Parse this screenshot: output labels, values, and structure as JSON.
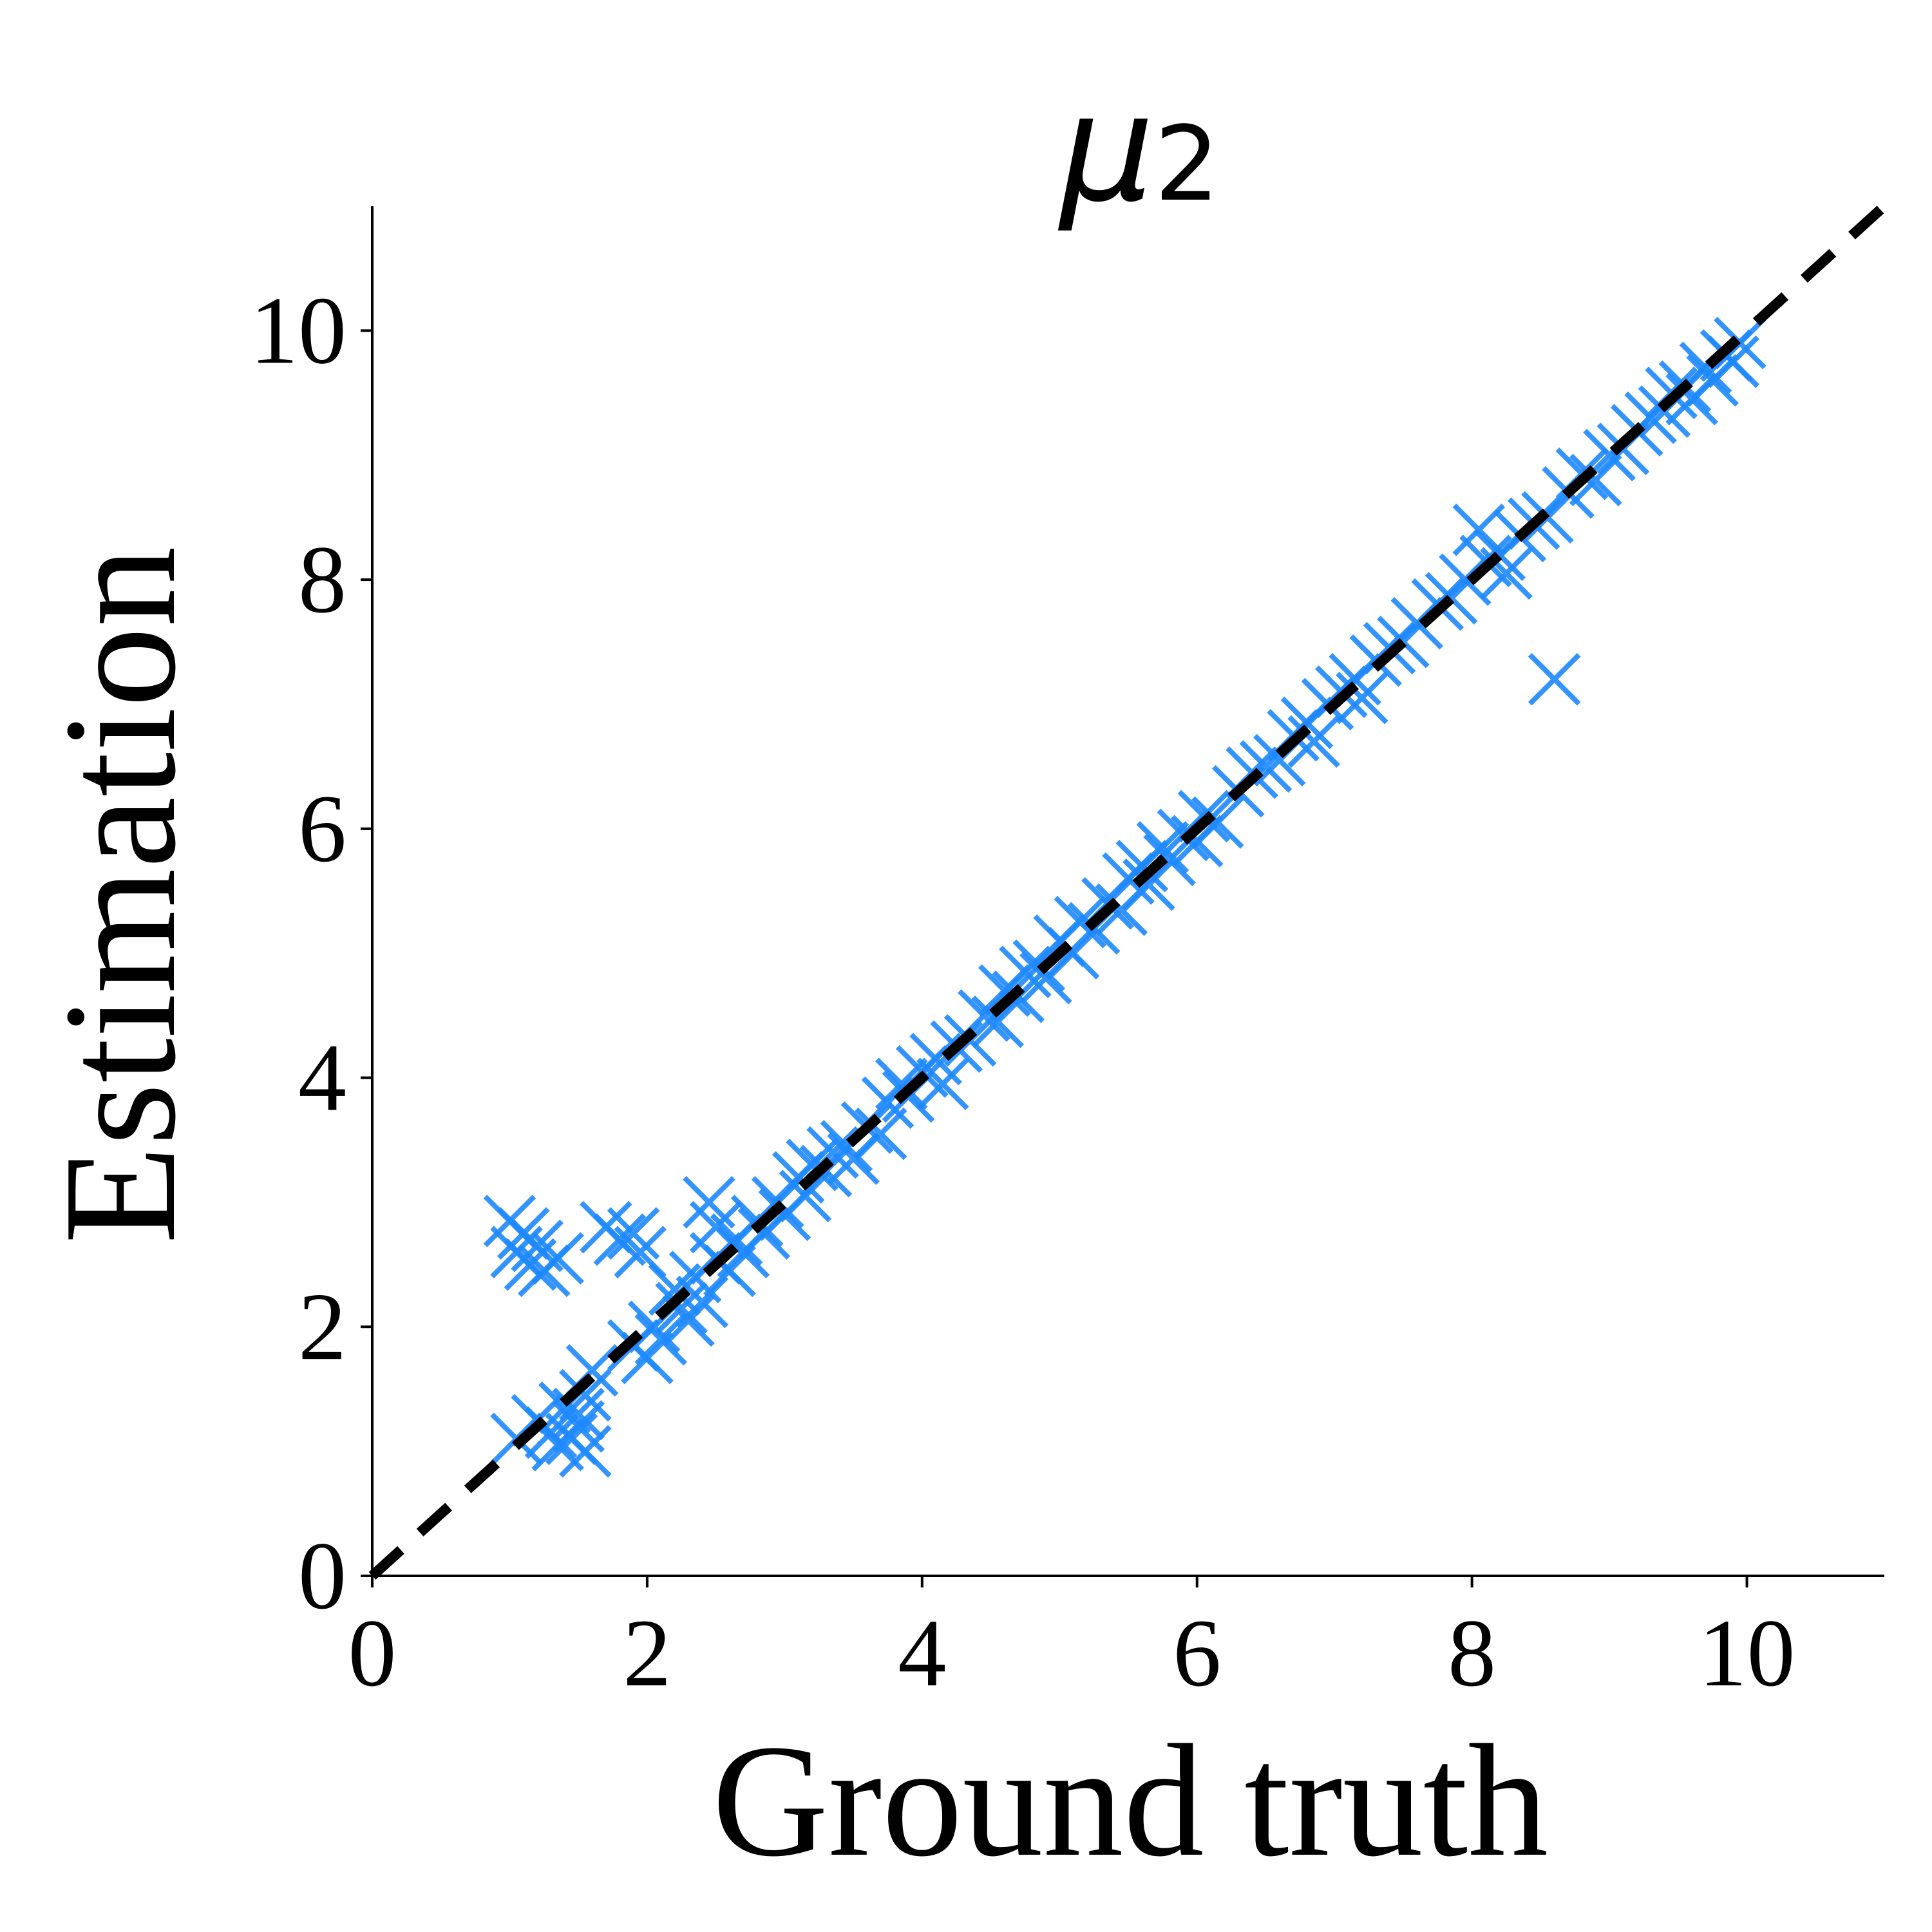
{
  "chart_data": {
    "type": "scatter",
    "title": {
      "main": "μ",
      "subscript": "2"
    },
    "xlabel": "Ground truth",
    "ylabel": "Estimation",
    "xlim": [
      0,
      11
    ],
    "ylim": [
      0,
      11
    ],
    "xticks": [
      0,
      2,
      4,
      6,
      8,
      10
    ],
    "yticks": [
      0,
      2,
      4,
      6,
      8,
      10
    ],
    "xtick_labels": [
      "0",
      "2",
      "4",
      "6",
      "8",
      "10"
    ],
    "ytick_labels": [
      "0",
      "2",
      "4",
      "6",
      "8",
      "10"
    ],
    "grid": false,
    "marker": "x",
    "marker_color": "#1E88FF",
    "reference_line": {
      "style": "dashed",
      "color": "#000000",
      "from": [
        0,
        0
      ],
      "to": [
        11,
        11
      ]
    },
    "points": [
      {
        "x": 1.0,
        "y": 2.85
      },
      {
        "x": 1.05,
        "y": 2.6
      },
      {
        "x": 1.1,
        "y": 2.75
      },
      {
        "x": 1.15,
        "y": 2.5
      },
      {
        "x": 1.2,
        "y": 2.65
      },
      {
        "x": 1.25,
        "y": 2.45
      },
      {
        "x": 1.35,
        "y": 2.55
      },
      {
        "x": 1.7,
        "y": 2.8
      },
      {
        "x": 1.8,
        "y": 2.7
      },
      {
        "x": 1.9,
        "y": 2.75
      },
      {
        "x": 1.95,
        "y": 2.6
      },
      {
        "x": 2.45,
        "y": 3.0
      },
      {
        "x": 2.5,
        "y": 2.8
      },
      {
        "x": 1.05,
        "y": 1.1
      },
      {
        "x": 1.2,
        "y": 1.25
      },
      {
        "x": 1.3,
        "y": 1.15
      },
      {
        "x": 1.35,
        "y": 1.05
      },
      {
        "x": 1.4,
        "y": 1.35
      },
      {
        "x": 1.45,
        "y": 1.1
      },
      {
        "x": 1.5,
        "y": 1.2
      },
      {
        "x": 1.55,
        "y": 1.45
      },
      {
        "x": 1.6,
        "y": 1.65
      },
      {
        "x": 1.55,
        "y": 1.0
      },
      {
        "x": 1.5,
        "y": 1.3
      },
      {
        "x": 1.9,
        "y": 1.85
      },
      {
        "x": 2.0,
        "y": 1.75
      },
      {
        "x": 2.05,
        "y": 2.0
      },
      {
        "x": 2.1,
        "y": 1.9
      },
      {
        "x": 2.2,
        "y": 2.3
      },
      {
        "x": 2.25,
        "y": 2.15
      },
      {
        "x": 2.3,
        "y": 2.05
      },
      {
        "x": 2.35,
        "y": 2.4
      },
      {
        "x": 2.4,
        "y": 2.2
      },
      {
        "x": 2.5,
        "y": 2.55
      },
      {
        "x": 2.6,
        "y": 2.45
      },
      {
        "x": 2.65,
        "y": 2.7
      },
      {
        "x": 2.7,
        "y": 2.6
      },
      {
        "x": 2.8,
        "y": 2.85
      },
      {
        "x": 2.85,
        "y": 2.75
      },
      {
        "x": 2.95,
        "y": 3.0
      },
      {
        "x": 3.0,
        "y": 2.9
      },
      {
        "x": 3.1,
        "y": 3.2
      },
      {
        "x": 3.15,
        "y": 3.05
      },
      {
        "x": 3.2,
        "y": 3.3
      },
      {
        "x": 3.3,
        "y": 3.25
      },
      {
        "x": 3.35,
        "y": 3.4
      },
      {
        "x": 3.45,
        "y": 3.45
      },
      {
        "x": 3.5,
        "y": 3.35
      },
      {
        "x": 3.6,
        "y": 3.6
      },
      {
        "x": 3.7,
        "y": 3.55
      },
      {
        "x": 3.75,
        "y": 3.8
      },
      {
        "x": 3.85,
        "y": 3.95
      },
      {
        "x": 3.9,
        "y": 3.85
      },
      {
        "x": 4.0,
        "y": 4.05
      },
      {
        "x": 4.1,
        "y": 4.15
      },
      {
        "x": 4.15,
        "y": 3.95
      },
      {
        "x": 4.25,
        "y": 4.25
      },
      {
        "x": 4.35,
        "y": 4.3
      },
      {
        "x": 4.45,
        "y": 4.5
      },
      {
        "x": 4.55,
        "y": 4.45
      },
      {
        "x": 4.6,
        "y": 4.7
      },
      {
        "x": 4.7,
        "y": 4.65
      },
      {
        "x": 4.75,
        "y": 4.85
      },
      {
        "x": 4.85,
        "y": 4.9
      },
      {
        "x": 4.9,
        "y": 4.8
      },
      {
        "x": 5.0,
        "y": 5.1
      },
      {
        "x": 5.1,
        "y": 5.0
      },
      {
        "x": 5.15,
        "y": 5.25
      },
      {
        "x": 5.25,
        "y": 5.2
      },
      {
        "x": 5.35,
        "y": 5.4
      },
      {
        "x": 5.45,
        "y": 5.35
      },
      {
        "x": 5.5,
        "y": 5.6
      },
      {
        "x": 5.6,
        "y": 5.7
      },
      {
        "x": 5.65,
        "y": 5.55
      },
      {
        "x": 5.75,
        "y": 5.85
      },
      {
        "x": 5.8,
        "y": 5.75
      },
      {
        "x": 5.9,
        "y": 5.95
      },
      {
        "x": 6.0,
        "y": 5.9
      },
      {
        "x": 6.05,
        "y": 6.1
      },
      {
        "x": 6.15,
        "y": 6.05
      },
      {
        "x": 6.3,
        "y": 6.3
      },
      {
        "x": 6.4,
        "y": 6.45
      },
      {
        "x": 6.5,
        "y": 6.5
      },
      {
        "x": 6.6,
        "y": 6.55
      },
      {
        "x": 6.7,
        "y": 6.75
      },
      {
        "x": 6.8,
        "y": 6.85
      },
      {
        "x": 6.85,
        "y": 6.7
      },
      {
        "x": 6.95,
        "y": 7.0
      },
      {
        "x": 7.05,
        "y": 7.1
      },
      {
        "x": 7.15,
        "y": 7.2
      },
      {
        "x": 7.2,
        "y": 7.05
      },
      {
        "x": 7.3,
        "y": 7.35
      },
      {
        "x": 7.4,
        "y": 7.45
      },
      {
        "x": 7.5,
        "y": 7.5
      },
      {
        "x": 7.6,
        "y": 7.65
      },
      {
        "x": 7.75,
        "y": 7.8
      },
      {
        "x": 7.85,
        "y": 7.85
      },
      {
        "x": 7.95,
        "y": 8.0
      },
      {
        "x": 8.05,
        "y": 8.4
      },
      {
        "x": 8.1,
        "y": 8.15
      },
      {
        "x": 8.2,
        "y": 8.2
      },
      {
        "x": 8.25,
        "y": 8.05
      },
      {
        "x": 8.35,
        "y": 8.35
      },
      {
        "x": 8.45,
        "y": 8.45
      },
      {
        "x": 8.55,
        "y": 8.5
      },
      {
        "x": 8.6,
        "y": 7.2
      },
      {
        "x": 8.7,
        "y": 8.7
      },
      {
        "x": 8.8,
        "y": 8.85
      },
      {
        "x": 8.9,
        "y": 8.8
      },
      {
        "x": 9.0,
        "y": 9.0
      },
      {
        "x": 9.1,
        "y": 9.05
      },
      {
        "x": 9.2,
        "y": 9.2
      },
      {
        "x": 9.3,
        "y": 9.3
      },
      {
        "x": 9.4,
        "y": 9.35
      },
      {
        "x": 9.45,
        "y": 9.5
      },
      {
        "x": 9.55,
        "y": 9.55
      },
      {
        "x": 9.6,
        "y": 9.45
      },
      {
        "x": 9.7,
        "y": 9.7
      },
      {
        "x": 9.75,
        "y": 9.6
      },
      {
        "x": 9.85,
        "y": 9.8
      },
      {
        "x": 9.9,
        "y": 9.75
      },
      {
        "x": 9.95,
        "y": 9.9
      }
    ]
  }
}
